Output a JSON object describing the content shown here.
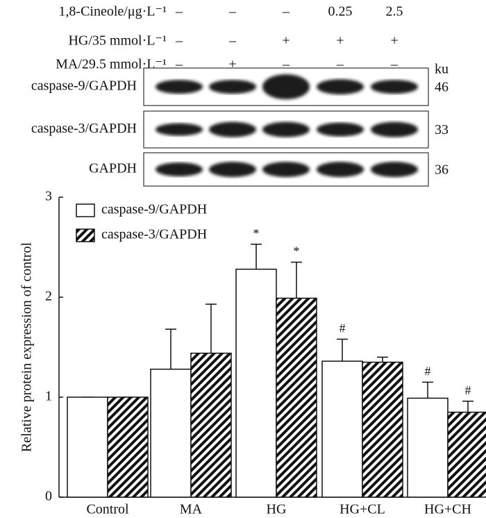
{
  "blot": {
    "conditions": [
      {
        "label": "1,8-Cineole/μg·L⁻¹",
        "values": [
          "–",
          "–",
          "–",
          "0.25",
          "2.5"
        ]
      },
      {
        "label": "HG/35 mmol·L⁻¹",
        "values": [
          "–",
          "–",
          "+",
          "+",
          "+"
        ]
      },
      {
        "label": "MA/29.5 mmol·L⁻¹",
        "values": [
          "–",
          "+",
          "–",
          "–",
          "–"
        ]
      }
    ],
    "unit": "ku",
    "rows": [
      {
        "label": "caspase-9/GAPDH",
        "size": "46"
      },
      {
        "label": "caspase-3/GAPDH",
        "size": "33"
      },
      {
        "label": "GAPDH",
        "size": "36"
      }
    ]
  },
  "chart_data": {
    "type": "bar",
    "y_label": "Relative protein expression of control",
    "categories": [
      "Control",
      "MA",
      "HG",
      "HG+CL",
      "HG+CH"
    ],
    "series": [
      {
        "name": "caspase-9/GAPDH",
        "color": "#ffffff",
        "hatch": false,
        "values": [
          1.0,
          1.28,
          2.28,
          1.36,
          0.99
        ],
        "errors": [
          0,
          0.4,
          0.25,
          0.22,
          0.16
        ],
        "labels": [
          null,
          null,
          "*",
          "#",
          "#"
        ]
      },
      {
        "name": "caspase-3/GAPDH",
        "color": "#ffffff",
        "hatch": true,
        "values": [
          1.0,
          1.44,
          1.99,
          1.35,
          0.85
        ],
        "errors": [
          0,
          0.49,
          0.36,
          0.05,
          0.11
        ],
        "labels": [
          null,
          null,
          "*",
          null,
          "#"
        ]
      }
    ],
    "ylim": [
      0,
      3
    ],
    "yticks": [
      0,
      1,
      2,
      3
    ],
    "legend": "top-left"
  }
}
